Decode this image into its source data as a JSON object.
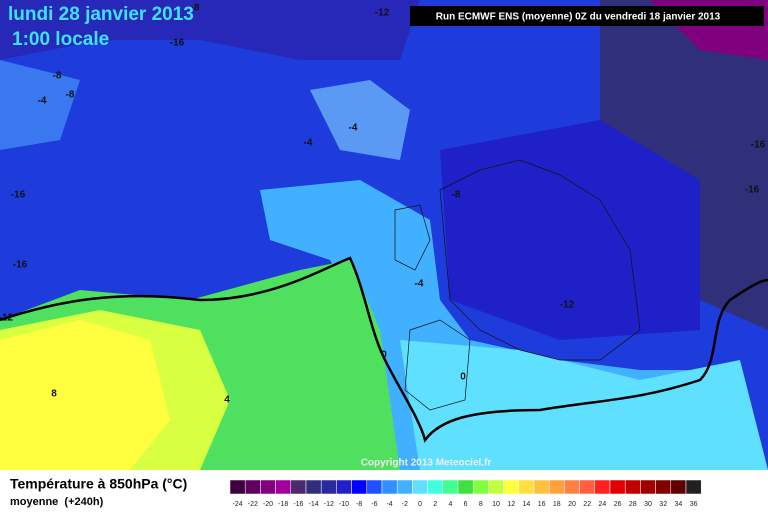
{
  "header": {
    "date": "lundi 28 janvier 2013",
    "time": "1:00 locale",
    "run": "Run ECMWF ENS (moyenne) 0Z du vendredi 18 janvier 2013"
  },
  "copyright": "Copyright 2013 Meteociel.fr",
  "footer": {
    "title": "Température à 850hPa (°C)",
    "subtitle": "moyenne  (+240h)"
  },
  "contour_labels": [
    -8,
    -12,
    -16,
    -8,
    -4,
    -8,
    -4,
    -4,
    -16,
    -16,
    -16,
    -12,
    -16,
    -8,
    -4,
    -12,
    0,
    0,
    4,
    8
  ],
  "legend": {
    "values": [
      -24,
      -22,
      -20,
      -18,
      -16,
      -14,
      -12,
      -10,
      -8,
      -6,
      -4,
      -2,
      0,
      2,
      4,
      6,
      8,
      10,
      12,
      14,
      16,
      18,
      20,
      22,
      24,
      26,
      28,
      30,
      32,
      34,
      36
    ],
    "colors": [
      "#400040",
      "#600060",
      "#800080",
      "#a000a0",
      "#4b2a6e",
      "#30307a",
      "#2a2aa0",
      "#2020c8",
      "#0000ff",
      "#2050ff",
      "#3090ff",
      "#40b0ff",
      "#60e0ff",
      "#40ffe0",
      "#40ff90",
      "#40e040",
      "#80ff40",
      "#c0ff40",
      "#ffff40",
      "#ffe040",
      "#ffc040",
      "#ffa040",
      "#ff8040",
      "#ff6040",
      "#ff2020",
      "#e00000",
      "#c00000",
      "#a00000",
      "#800000",
      "#600000",
      "#202020"
    ]
  }
}
